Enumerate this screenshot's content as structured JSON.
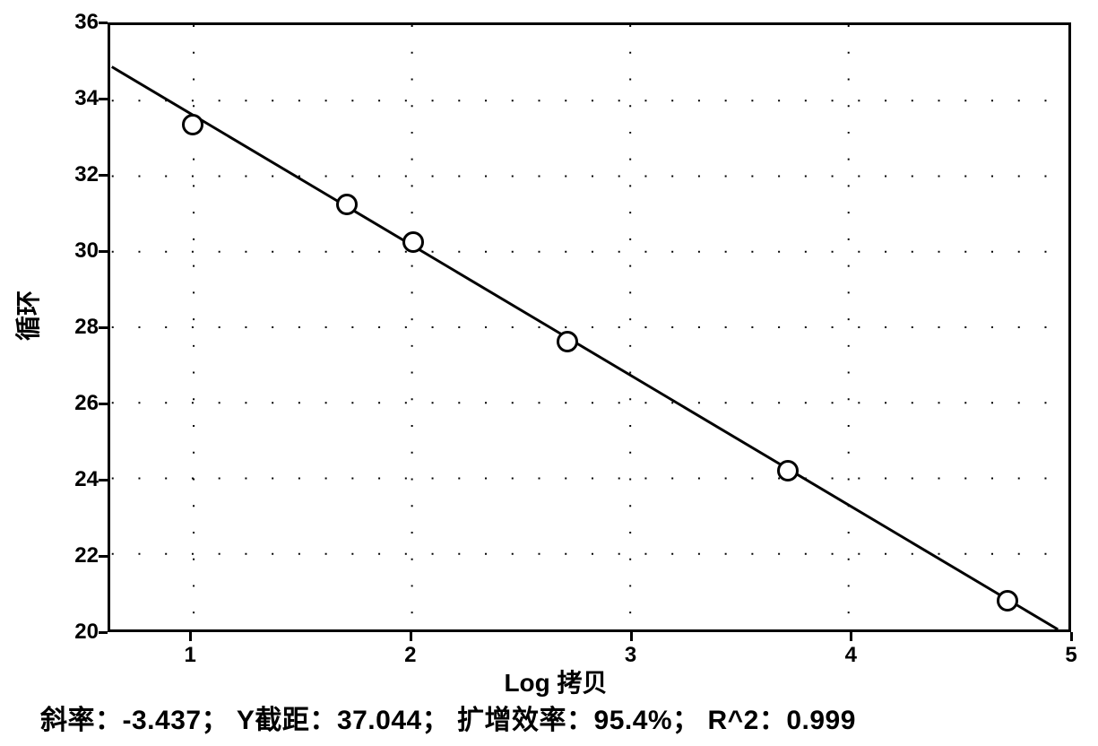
{
  "chart": {
    "type": "scatter",
    "background_color": "#ffffff",
    "border_color": "#000000",
    "border_width": 3,
    "grid_color": "#000000",
    "grid_style": "dotted",
    "xlabel": "Log 拷贝",
    "ylabel": "循环",
    "label_fontsize": 28,
    "tick_fontsize": 24,
    "xlim": [
      0.625,
      5
    ],
    "ylim": [
      20,
      36
    ],
    "xticks": [
      1,
      2,
      3,
      4,
      5
    ],
    "yticks": [
      20,
      22,
      24,
      26,
      28,
      30,
      32,
      34,
      36
    ],
    "data_points": [
      {
        "x": 1.0,
        "y": 33.4
      },
      {
        "x": 1.7,
        "y": 31.3
      },
      {
        "x": 2.0,
        "y": 30.3
      },
      {
        "x": 2.7,
        "y": 27.7
      },
      {
        "x": 3.7,
        "y": 24.3
      },
      {
        "x": 4.7,
        "y": 20.9
      }
    ],
    "marker_size": 24,
    "marker_color": "#ffffff",
    "marker_border_color": "#000000",
    "marker_border_width": 3,
    "regression": {
      "slope": -3.437,
      "intercept": 37.044,
      "line_color": "#000000",
      "line_width": 3
    },
    "xtick_labels": [
      "1",
      "2",
      "3",
      "4",
      "5"
    ],
    "ytick_labels": [
      "20",
      "22",
      "24",
      "26",
      "28",
      "30",
      "32",
      "34",
      "36"
    ]
  },
  "caption": {
    "slope_label": "斜率：",
    "slope_value": "-3.437",
    "intercept_label": "Y截距：",
    "intercept_value": "37.044",
    "efficiency_label": "扩增效率：",
    "efficiency_value": "95.4%",
    "r2_label": "R^2：",
    "r2_value": "0.999",
    "separator": "；"
  }
}
